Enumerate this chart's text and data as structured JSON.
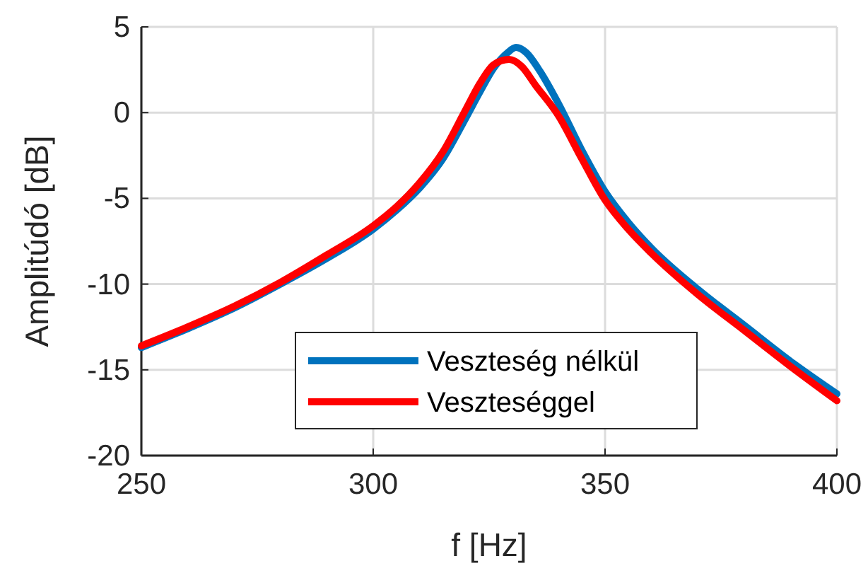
{
  "chart_data": {
    "type": "line",
    "xlabel": "f [Hz]",
    "ylabel": "Amplitúdó [dB]",
    "xlim": [
      250,
      400
    ],
    "ylim": [
      -20,
      5
    ],
    "xticks": [
      250,
      300,
      350,
      400
    ],
    "yticks": [
      -20,
      -15,
      -10,
      -5,
      0,
      5
    ],
    "grid": true,
    "legend": "bottom",
    "line_style": "solid",
    "marker": "none",
    "series": [
      {
        "name": "Veszteség nélkül",
        "color": "#0072bd",
        "x": [
          250,
          260,
          270,
          280,
          290,
          300,
          305,
          310,
          315,
          320,
          323,
          326,
          329,
          330.8,
          333,
          336,
          340,
          345,
          350,
          355,
          360,
          370,
          380,
          390,
          400
        ],
        "values": [
          -13.7,
          -12.6,
          -11.4,
          -10.0,
          -8.5,
          -6.8,
          -5.7,
          -4.4,
          -2.7,
          -0.3,
          1.2,
          2.6,
          3.5,
          3.8,
          3.5,
          2.4,
          0.5,
          -2.2,
          -4.6,
          -6.4,
          -7.9,
          -10.3,
          -12.4,
          -14.5,
          -16.4
        ]
      },
      {
        "name": "Veszteséggel",
        "color": "#ff0000",
        "x": [
          250,
          260,
          270,
          280,
          290,
          300,
          305,
          310,
          315,
          320,
          323,
          326,
          329.3,
          332,
          335,
          340,
          345,
          350,
          355,
          360,
          370,
          380,
          390,
          400
        ],
        "values": [
          -13.6,
          -12.5,
          -11.3,
          -9.9,
          -8.3,
          -6.6,
          -5.5,
          -4.1,
          -2.3,
          0.2,
          1.7,
          2.8,
          3.1,
          2.7,
          1.6,
          -0.2,
          -2.7,
          -5.1,
          -6.8,
          -8.2,
          -10.6,
          -12.7,
          -14.8,
          -16.8
        ]
      }
    ]
  }
}
